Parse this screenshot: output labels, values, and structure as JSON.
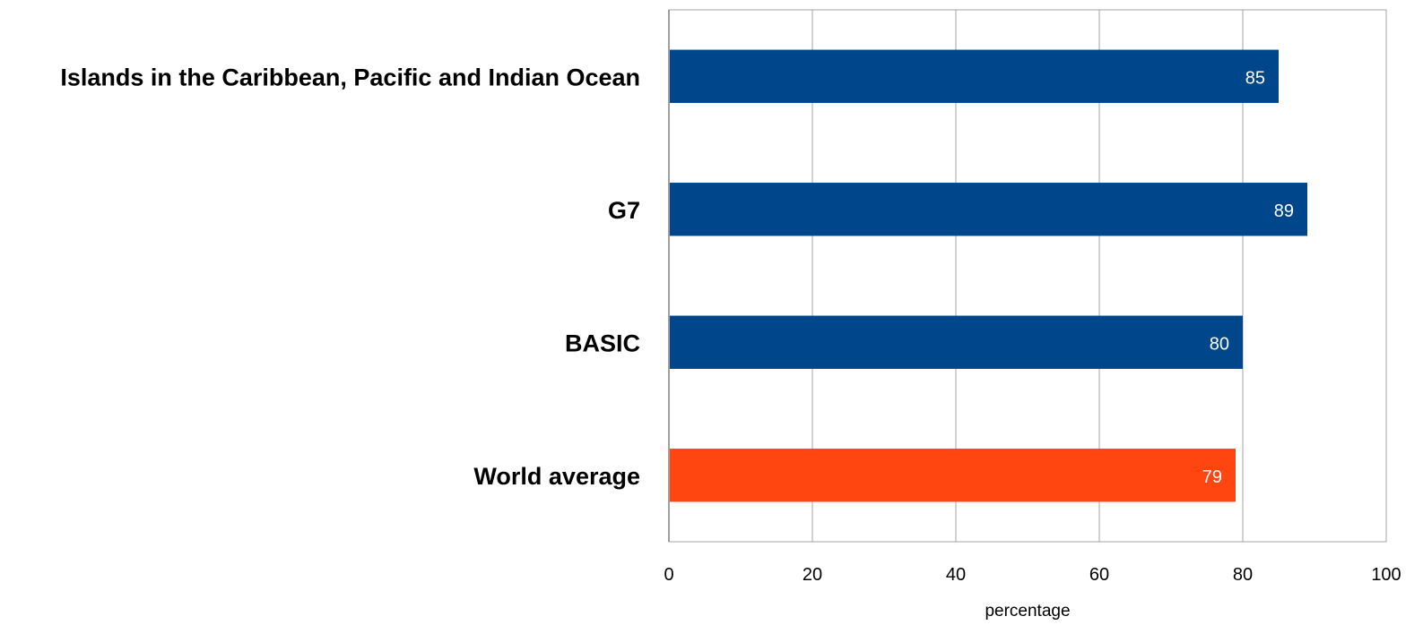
{
  "chart_data": {
    "type": "bar",
    "orientation": "horizontal",
    "title": "",
    "xlabel": "percentage",
    "ylabel": "",
    "xlim": [
      0,
      100
    ],
    "xticks": [
      0,
      20,
      40,
      60,
      80,
      100
    ],
    "grid": true,
    "legend": "none",
    "categories": [
      "Islands in the Caribbean, Pacific and Indian Ocean",
      "G7",
      "BASIC",
      "World average"
    ],
    "values": [
      85,
      89,
      80,
      79
    ],
    "bar_colors": [
      "#00468b",
      "#00468b",
      "#00468b",
      "#ff4611"
    ],
    "data_labels": [
      "85",
      "89",
      "80",
      "79"
    ]
  }
}
